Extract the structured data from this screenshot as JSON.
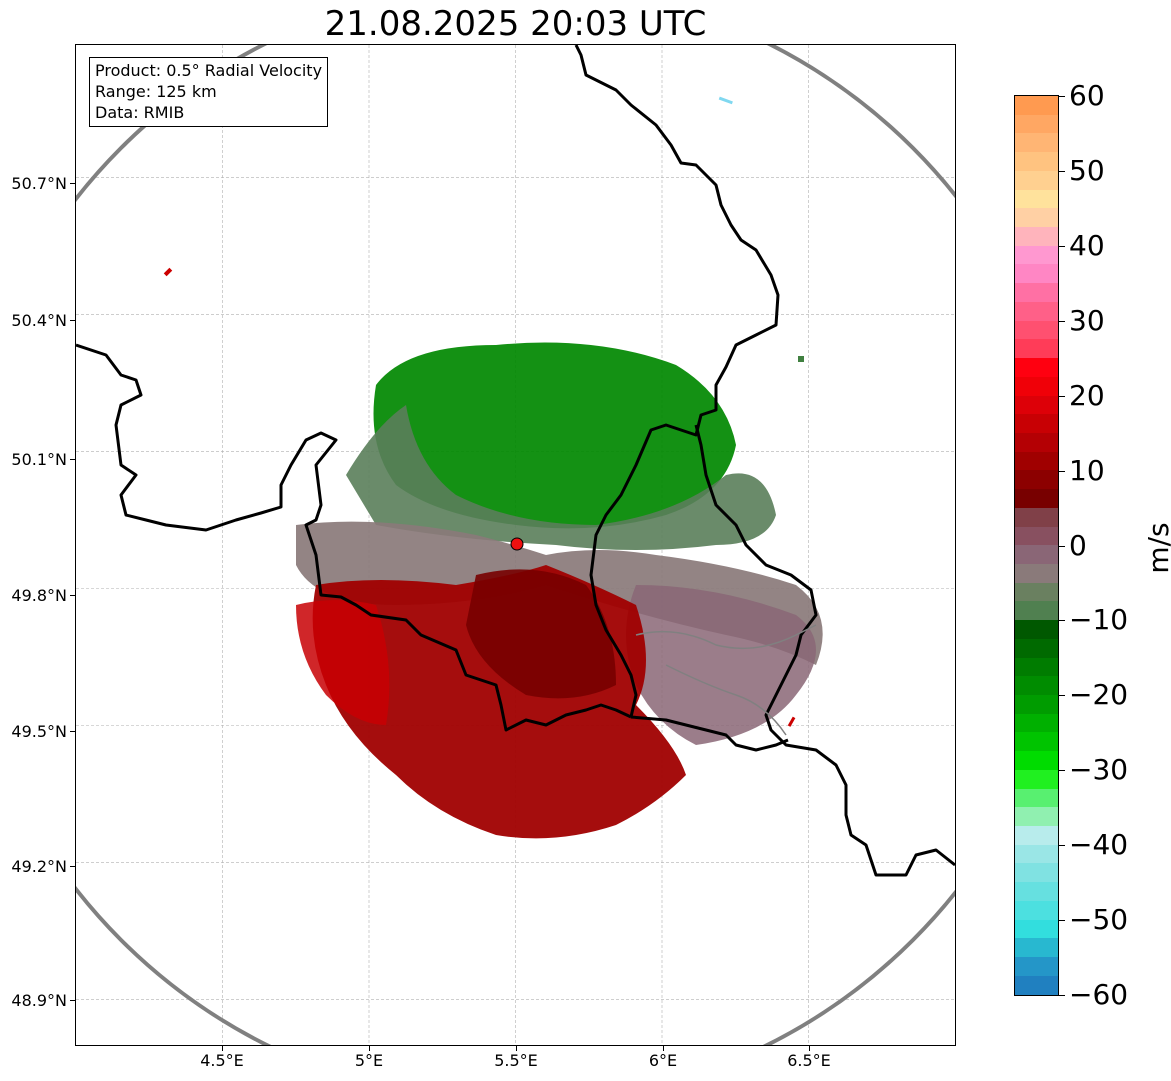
{
  "title": "21.08.2025 20:03 UTC",
  "info": {
    "product": "Product: 0.5° Radial Velocity",
    "range": "Range: 125 km",
    "data": "Data: RMIB"
  },
  "axes": {
    "lat_labels": [
      "50.7°N",
      "50.4°N",
      "50.1°N",
      "49.8°N",
      "49.5°N",
      "49.2°N",
      "48.9°N"
    ],
    "lat_values": [
      50.7,
      50.4,
      50.1,
      49.8,
      49.5,
      49.2,
      48.9
    ],
    "lon_labels": [
      "4.5°E",
      "5°E",
      "5.5°E",
      "6°E",
      "6.5°E"
    ],
    "lon_values": [
      4.5,
      5.0,
      5.5,
      6.0,
      6.5
    ],
    "lat_range": [
      48.8,
      50.99
    ],
    "lon_range": [
      4.0,
      7.0
    ]
  },
  "colorbar": {
    "unit": "m/s",
    "range": [
      -60,
      60
    ],
    "tick_labels": [
      "60",
      "50",
      "40",
      "30",
      "20",
      "10",
      "0",
      "−10",
      "−20",
      "−30",
      "−40",
      "−50",
      "−60"
    ],
    "tick_values": [
      60,
      50,
      40,
      30,
      20,
      10,
      0,
      -10,
      -20,
      -30,
      -40,
      -50,
      -60
    ],
    "colors": [
      "#ff9a50",
      "#ffa763",
      "#ffb574",
      "#ffc380",
      "#ffd090",
      "#ffe29c",
      "#ffd0a4",
      "#ffb4bc",
      "#ff98d0",
      "#ff86c4",
      "#ff70a4",
      "#ff6088",
      "#ff5070",
      "#ff3c58",
      "#ff0010",
      "#f00008",
      "#dd0008",
      "#c80004",
      "#b40004",
      "#a00000",
      "#8c0000",
      "#780000",
      "#804048",
      "#885060",
      "#8a6676",
      "#8a7a7a",
      "#6a8060",
      "#508050",
      "#005800",
      "#006a00",
      "#007c00",
      "#008c00",
      "#009c00",
      "#00b000",
      "#00c400",
      "#00dc00",
      "#20f020",
      "#58f070",
      "#90f0b0",
      "#b8ecec",
      "#9ae6e6",
      "#80e2e2",
      "#66e0e0",
      "#4ce0e0",
      "#32dede",
      "#28b8d0",
      "#2496c8",
      "#2080c0"
    ]
  },
  "radar": {
    "site": {
      "lat": 49.914,
      "lon": 5.506
    },
    "range_ring_radius_deg_lat": 1.12,
    "site_color": "#ee1010"
  },
  "colors": {
    "outbound_red": "#a00000",
    "inbound_green": "#008800",
    "near_zero": "#8a7a7a",
    "ring": "#808080",
    "border": "#000000"
  }
}
